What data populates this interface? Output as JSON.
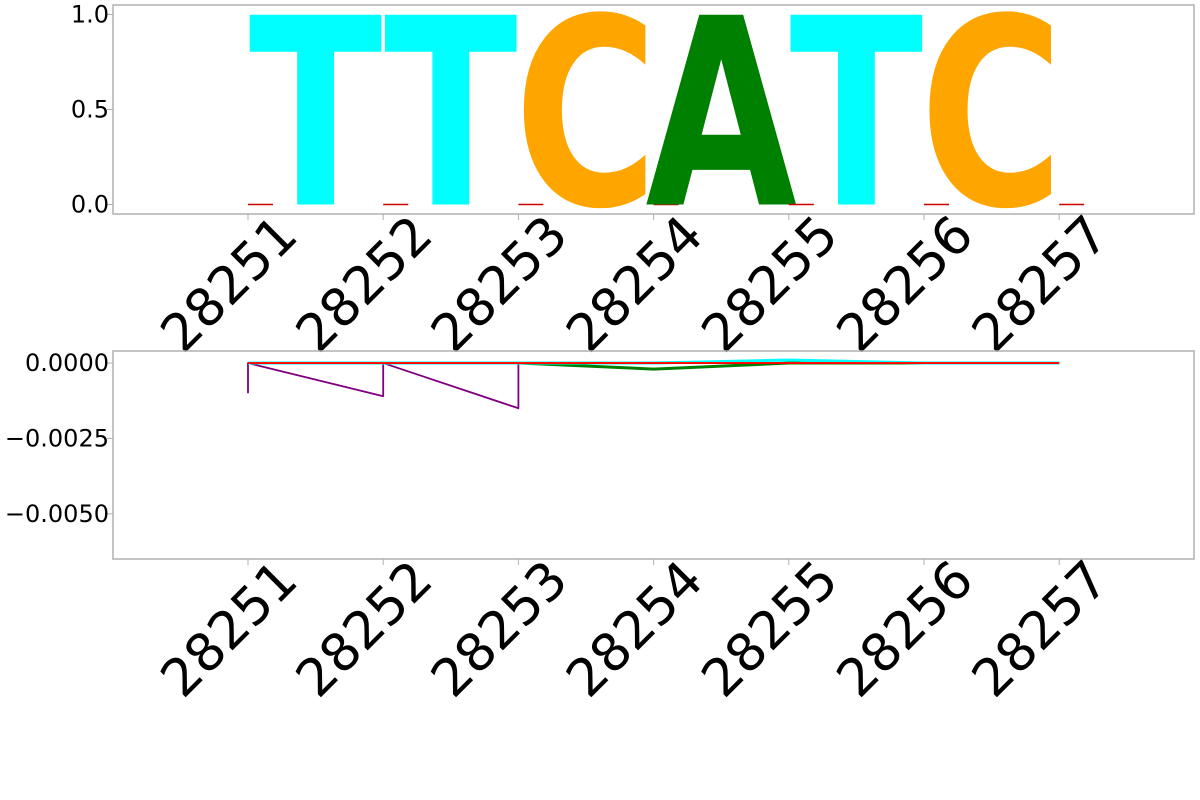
{
  "chart_data": [
    {
      "type": "sequence-logo",
      "title": "",
      "xlabel": "",
      "ylabel": "",
      "categories": [
        "28251",
        "28252",
        "28253",
        "28254",
        "28255",
        "28256",
        "28257"
      ],
      "letters": [
        "T",
        "T",
        "C",
        "A",
        "T",
        "C",
        ""
      ],
      "probabilities": [
        1.0,
        1.0,
        1.0,
        1.0,
        1.0,
        1.0,
        0.0
      ],
      "yticks": [
        "0.0",
        "0.5",
        "1.0"
      ],
      "ylim": [
        -0.05,
        1.05
      ],
      "grid": false,
      "letter_colors": {
        "A": "#008000",
        "C": "#ffa500",
        "G": "#ff0000",
        "T": "#00ffff"
      }
    },
    {
      "type": "line",
      "title": "",
      "xlabel": "",
      "ylabel": "",
      "categories": [
        "28251",
        "28252",
        "28253",
        "28254",
        "28255",
        "28256",
        "28257"
      ],
      "yticks": [
        "0.0000",
        "−0.0025",
        "−0.0050"
      ],
      "ylim": [
        -0.0065,
        0.0004
      ],
      "grid": false,
      "series": [
        {
          "color": "#800080",
          "values": [
            -0.001,
            -0.0011,
            -0.0015,
            0.0,
            0.0,
            0.0,
            0.0
          ]
        },
        {
          "color": "#008000",
          "values": [
            0.0,
            0.0,
            0.0,
            -0.0002,
            0.0,
            0.0,
            0.0
          ]
        },
        {
          "color": "#00ffff",
          "values": [
            0.0,
            0.0,
            0.0,
            0.0,
            0.0001,
            0.0,
            0.0
          ]
        },
        {
          "color": "#ffa500",
          "values": [
            0.0,
            0.0,
            0.0,
            0.0,
            0.0,
            0.0,
            0.0
          ]
        },
        {
          "color": "#ff0000",
          "values": [
            0.0,
            0.0,
            0.0,
            0.0,
            0.0,
            0.0,
            0.0
          ]
        }
      ]
    }
  ]
}
